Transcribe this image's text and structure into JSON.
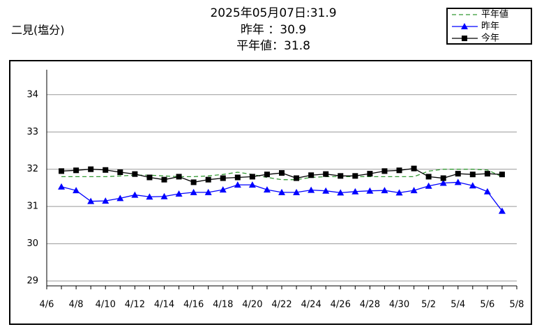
{
  "chart_data": {
    "type": "line",
    "label": "二見(塩分)",
    "title_lines": [
      "2025年05月07日:31.9",
      "昨年 ：30.9",
      "平年値：31.8"
    ],
    "categories": [
      "4/6",
      null,
      "4/8",
      null,
      "4/10",
      null,
      "4/12",
      null,
      "4/14",
      null,
      "4/16",
      null,
      "4/18",
      null,
      "4/20",
      null,
      "4/22",
      null,
      "4/24",
      null,
      "4/26",
      null,
      "4/28",
      null,
      "4/30",
      null,
      "5/2",
      null,
      "5/4",
      null,
      "5/6",
      null,
      "5/8"
    ],
    "series": [
      {
        "name": "平年値",
        "color": "#339933",
        "linestyle": "dashed",
        "marker": "none",
        "values": [
          null,
          31.8,
          31.8,
          31.8,
          31.8,
          31.82,
          31.84,
          31.84,
          31.82,
          31.8,
          31.8,
          31.82,
          31.86,
          31.92,
          31.86,
          31.78,
          31.72,
          31.72,
          31.78,
          31.8,
          31.8,
          31.8,
          31.8,
          31.8,
          31.8,
          31.8,
          31.95,
          32.0,
          32.0,
          32.0,
          31.98,
          31.8,
          null
        ]
      },
      {
        "name": "昨年",
        "color": "#0000ff",
        "linestyle": "solid",
        "marker": "triangle",
        "values": [
          null,
          31.53,
          31.43,
          31.14,
          31.15,
          31.22,
          31.31,
          31.26,
          31.27,
          31.34,
          31.38,
          31.38,
          31.45,
          31.58,
          31.58,
          31.45,
          31.38,
          31.38,
          31.44,
          31.42,
          31.37,
          31.4,
          31.42,
          31.43,
          31.37,
          31.43,
          31.55,
          31.63,
          31.65,
          31.56,
          31.4,
          30.88,
          null
        ]
      },
      {
        "name": "今年",
        "color": "#000000",
        "linestyle": "solid",
        "marker": "square",
        "values": [
          null,
          31.95,
          31.97,
          32.0,
          31.98,
          31.92,
          31.87,
          31.78,
          31.72,
          31.8,
          31.65,
          31.72,
          31.76,
          31.78,
          31.8,
          31.86,
          31.9,
          31.76,
          31.84,
          31.87,
          31.82,
          31.82,
          31.88,
          31.95,
          31.97,
          32.02,
          31.8,
          31.76,
          31.88,
          31.86,
          31.88,
          31.86,
          null
        ]
      }
    ],
    "ylim": [
      28.87,
      34.67
    ],
    "yticks": [
      29,
      30,
      31,
      32,
      33,
      34
    ],
    "grid": true,
    "legend": "upper right"
  }
}
